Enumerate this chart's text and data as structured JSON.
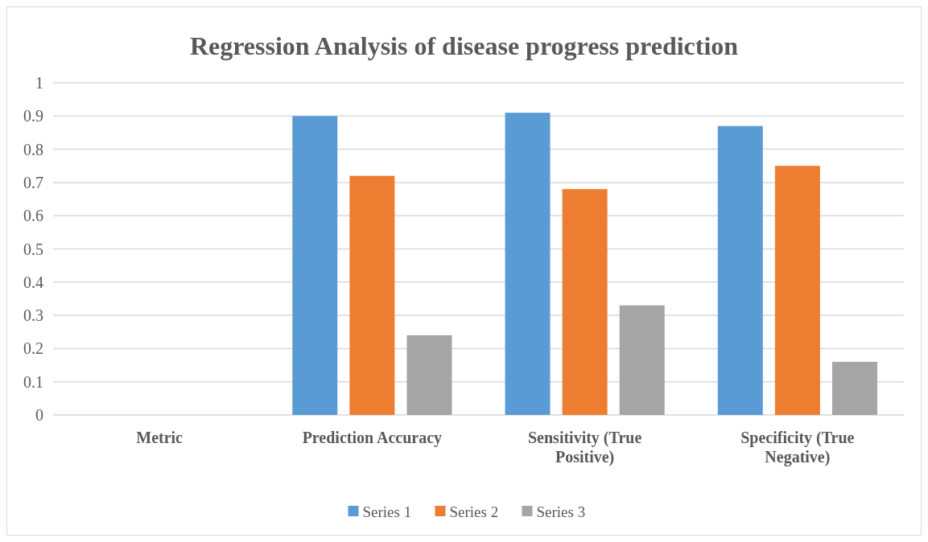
{
  "chart_data": {
    "type": "bar",
    "title": "Regression Analysis of disease progress prediction",
    "categories": [
      "Metric",
      "Prediction Accuracy",
      "Sensitivity (True Positive)",
      "Specificity (True Negative)"
    ],
    "series": [
      {
        "name": "Series 1",
        "color": "#5b9bd5",
        "values": [
          null,
          0.9,
          0.91,
          0.87
        ]
      },
      {
        "name": "Series 2",
        "color": "#ed7d31",
        "values": [
          null,
          0.72,
          0.68,
          0.75
        ]
      },
      {
        "name": "Series 3",
        "color": "#a5a5a5",
        "values": [
          null,
          0.24,
          0.33,
          0.16
        ]
      }
    ],
    "ylim": [
      0,
      1
    ],
    "yticks": [
      0,
      0.1,
      0.2,
      0.3,
      0.4,
      0.5,
      0.6,
      0.7,
      0.8,
      0.9,
      1
    ],
    "grid": "y",
    "legend": "bottom"
  }
}
